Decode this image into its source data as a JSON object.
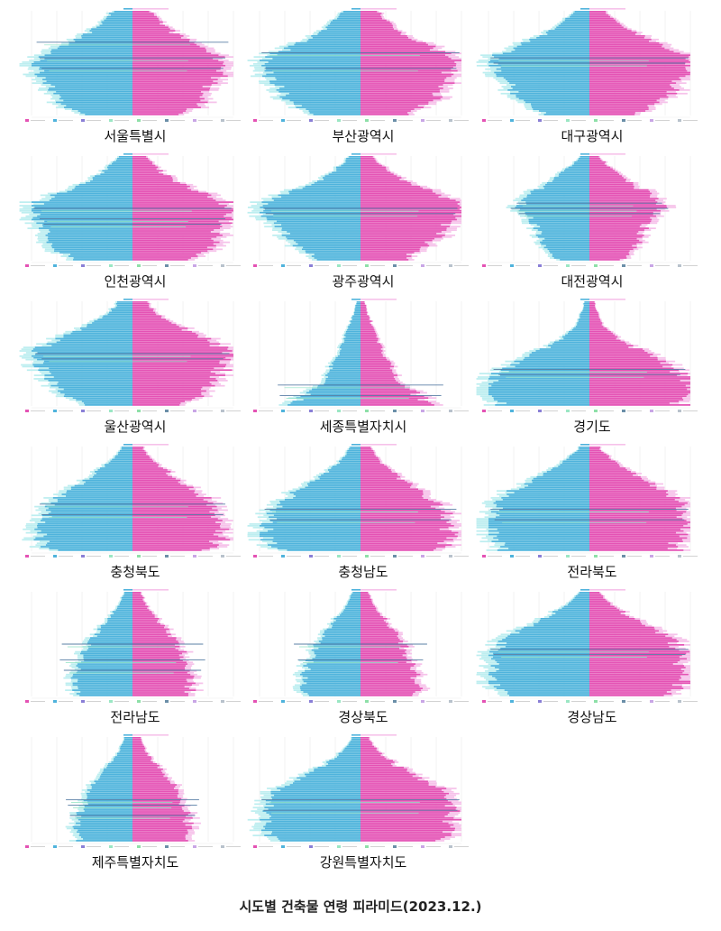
{
  "title": "시도별 건축물 연령 피라미드(2023.12.)",
  "colors": {
    "male_bar": "#4fb3dc",
    "male_light": "#bdeef0",
    "female_bar": "#e452b4",
    "female_light": "#f6c2ea",
    "accent_line": "#5a7fa6",
    "light_line": "#8fe3c4",
    "grid": "#e6e6e6",
    "legend": [
      "#e452b4",
      "#4fb3dc",
      "#8a7fd6",
      "#9be7c4",
      "#8ee0a8",
      "#6b8fa8",
      "#c9a6e6",
      "#b8c2cc"
    ]
  },
  "chart_data": [
    {
      "type": "bar",
      "label": "서울특별시",
      "shape": [
        0.2,
        0.25,
        0.3,
        0.35,
        0.42,
        0.5,
        0.6,
        0.72,
        0.85,
        0.95,
        1.0,
        0.95,
        0.9,
        0.86,
        0.82,
        0.8,
        0.78,
        0.75,
        0.7,
        0.6,
        0.5
      ],
      "female_ratio": 0.95,
      "highlights": [
        [
          6,
          0.95
        ],
        [
          9,
          0.92
        ],
        [
          11,
          0.9
        ]
      ]
    },
    {
      "type": "bar",
      "label": "부산광역시",
      "shape": [
        0.18,
        0.22,
        0.28,
        0.34,
        0.4,
        0.48,
        0.58,
        0.7,
        0.82,
        0.92,
        0.98,
        0.96,
        0.92,
        0.88,
        0.84,
        0.8,
        0.76,
        0.72,
        0.66,
        0.56,
        0.46
      ],
      "female_ratio": 0.98,
      "highlights": [
        [
          8,
          0.98
        ],
        [
          11,
          0.95
        ]
      ]
    },
    {
      "type": "bar",
      "label": "대구광역시",
      "shape": [
        0.16,
        0.2,
        0.26,
        0.32,
        0.4,
        0.5,
        0.62,
        0.74,
        0.86,
        0.95,
        1.0,
        0.95,
        0.9,
        0.85,
        0.8,
        0.76,
        0.72,
        0.68,
        0.62,
        0.52,
        0.42
      ],
      "female_ratio": 1.05,
      "highlights": [
        [
          9,
          0.98
        ],
        [
          10,
          0.95
        ]
      ]
    },
    {
      "type": "bar",
      "label": "인천광역시",
      "shape": [
        0.14,
        0.18,
        0.24,
        0.3,
        0.38,
        0.48,
        0.6,
        0.72,
        0.84,
        0.94,
        1.0,
        0.98,
        0.95,
        0.92,
        0.9,
        0.88,
        0.86,
        0.82,
        0.76,
        0.66,
        0.54
      ],
      "female_ratio": 0.98,
      "highlights": [
        [
          10,
          0.98
        ],
        [
          12,
          0.92
        ],
        [
          13,
          0.88
        ]
      ]
    },
    {
      "type": "bar",
      "label": "광주광역시",
      "shape": [
        0.12,
        0.16,
        0.22,
        0.28,
        0.36,
        0.46,
        0.58,
        0.7,
        0.82,
        0.92,
        1.0,
        0.96,
        0.9,
        0.84,
        0.78,
        0.74,
        0.7,
        0.66,
        0.6,
        0.5,
        0.4
      ],
      "female_ratio": 1.04,
      "highlights": [
        [
          10,
          0.96
        ],
        [
          11,
          0.94
        ]
      ]
    },
    {
      "type": "bar",
      "label": "대전광역시",
      "shape": [
        0.1,
        0.14,
        0.2,
        0.26,
        0.32,
        0.4,
        0.48,
        0.56,
        0.62,
        0.66,
        0.68,
        0.62,
        0.58,
        0.55,
        0.52,
        0.5,
        0.48,
        0.45,
        0.42,
        0.38,
        0.32
      ],
      "female_ratio": 1.02,
      "highlights": [
        [
          9,
          0.72
        ],
        [
          10,
          0.78
        ],
        [
          11,
          0.7
        ]
      ]
    },
    {
      "type": "bar",
      "label": "울산광역시",
      "shape": [
        0.14,
        0.18,
        0.24,
        0.3,
        0.38,
        0.48,
        0.58,
        0.7,
        0.82,
        0.92,
        1.0,
        0.96,
        0.92,
        0.88,
        0.84,
        0.8,
        0.76,
        0.72,
        0.66,
        0.56,
        0.46
      ],
      "female_ratio": 1.0,
      "highlights": [
        [
          10,
          0.96
        ],
        [
          11,
          0.9
        ]
      ]
    },
    {
      "type": "bar",
      "label": "세종특별자치시",
      "shape": [
        0.04,
        0.05,
        0.06,
        0.08,
        0.1,
        0.12,
        0.14,
        0.16,
        0.18,
        0.2,
        0.22,
        0.25,
        0.28,
        0.3,
        0.33,
        0.36,
        0.4,
        0.46,
        0.54,
        0.62,
        0.7
      ],
      "female_ratio": 1.05,
      "highlights": [
        [
          16,
          0.82
        ],
        [
          18,
          0.8
        ]
      ]
    },
    {
      "type": "bar",
      "label": "경기도",
      "shape": [
        0.05,
        0.06,
        0.08,
        0.1,
        0.12,
        0.15,
        0.2,
        0.26,
        0.34,
        0.44,
        0.56,
        0.66,
        0.76,
        0.84,
        0.9,
        0.95,
        0.98,
        1.0,
        0.98,
        0.94,
        0.88
      ],
      "female_ratio": 1.02,
      "highlights": [
        [
          13,
          0.95
        ],
        [
          14,
          0.9
        ]
      ]
    },
    {
      "type": "bar",
      "label": "충청북도",
      "shape": [
        0.1,
        0.14,
        0.18,
        0.24,
        0.3,
        0.36,
        0.44,
        0.52,
        0.6,
        0.68,
        0.74,
        0.78,
        0.82,
        0.84,
        0.86,
        0.88,
        0.9,
        0.92,
        0.9,
        0.86,
        0.8
      ],
      "female_ratio": 0.96,
      "highlights": [
        [
          11,
          0.92
        ],
        [
          13,
          0.9
        ]
      ]
    },
    {
      "type": "bar",
      "label": "충청남도",
      "shape": [
        0.1,
        0.13,
        0.17,
        0.22,
        0.28,
        0.34,
        0.42,
        0.5,
        0.58,
        0.66,
        0.72,
        0.78,
        0.82,
        0.86,
        0.9,
        0.92,
        0.94,
        0.96,
        0.92,
        0.86,
        0.78
      ],
      "female_ratio": 0.94,
      "highlights": [
        [
          12,
          0.95
        ],
        [
          14,
          0.9
        ]
      ]
    },
    {
      "type": "bar",
      "label": "전라북도",
      "shape": [
        0.1,
        0.14,
        0.2,
        0.26,
        0.34,
        0.42,
        0.52,
        0.62,
        0.72,
        0.8,
        0.86,
        0.88,
        0.9,
        0.92,
        0.94,
        0.95,
        0.96,
        0.96,
        0.94,
        0.9,
        0.84
      ],
      "female_ratio": 0.98,
      "highlights": [
        [
          12,
          0.98
        ],
        [
          14,
          0.94
        ]
      ]
    },
    {
      "type": "bar",
      "label": "전라남도",
      "shape": [
        0.08,
        0.1,
        0.13,
        0.16,
        0.2,
        0.24,
        0.28,
        0.32,
        0.36,
        0.4,
        0.44,
        0.46,
        0.48,
        0.5,
        0.52,
        0.54,
        0.56,
        0.58,
        0.57,
        0.55,
        0.52
      ],
      "female_ratio": 1.0,
      "highlights": [
        [
          10,
          0.7
        ],
        [
          13,
          0.72
        ],
        [
          15,
          0.68
        ]
      ]
    },
    {
      "type": "bar",
      "label": "경상북도",
      "shape": [
        0.08,
        0.1,
        0.13,
        0.16,
        0.2,
        0.24,
        0.28,
        0.32,
        0.36,
        0.4,
        0.44,
        0.46,
        0.48,
        0.5,
        0.52,
        0.54,
        0.56,
        0.58,
        0.57,
        0.55,
        0.52
      ],
      "female_ratio": 0.98,
      "highlights": [
        [
          10,
          0.66
        ],
        [
          13,
          0.62
        ]
      ]
    },
    {
      "type": "bar",
      "label": "경상남도",
      "shape": [
        0.1,
        0.14,
        0.2,
        0.28,
        0.36,
        0.46,
        0.56,
        0.66,
        0.76,
        0.84,
        0.9,
        0.92,
        0.94,
        0.96,
        0.97,
        0.98,
        0.98,
        0.97,
        0.95,
        0.9,
        0.84
      ],
      "female_ratio": 0.97,
      "highlights": [
        [
          11,
          0.98
        ],
        [
          12,
          0.95
        ]
      ]
    },
    {
      "type": "bar",
      "label": "제주특별자치도",
      "shape": [
        0.08,
        0.1,
        0.12,
        0.15,
        0.18,
        0.22,
        0.26,
        0.3,
        0.34,
        0.38,
        0.42,
        0.44,
        0.46,
        0.48,
        0.5,
        0.52,
        0.54,
        0.56,
        0.58,
        0.56,
        0.52
      ],
      "female_ratio": 1.02,
      "highlights": [
        [
          12,
          0.66
        ],
        [
          13,
          0.64
        ],
        [
          15,
          0.62
        ]
      ]
    },
    {
      "type": "bar",
      "label": "강원특별자치도",
      "shape": [
        0.08,
        0.11,
        0.15,
        0.2,
        0.26,
        0.33,
        0.42,
        0.52,
        0.62,
        0.72,
        0.8,
        0.86,
        0.9,
        0.92,
        0.94,
        0.95,
        0.96,
        0.96,
        0.94,
        0.9,
        0.84
      ],
      "female_ratio": 0.98,
      "highlights": [
        [
          12,
          0.98
        ],
        [
          14,
          0.96
        ]
      ]
    }
  ]
}
